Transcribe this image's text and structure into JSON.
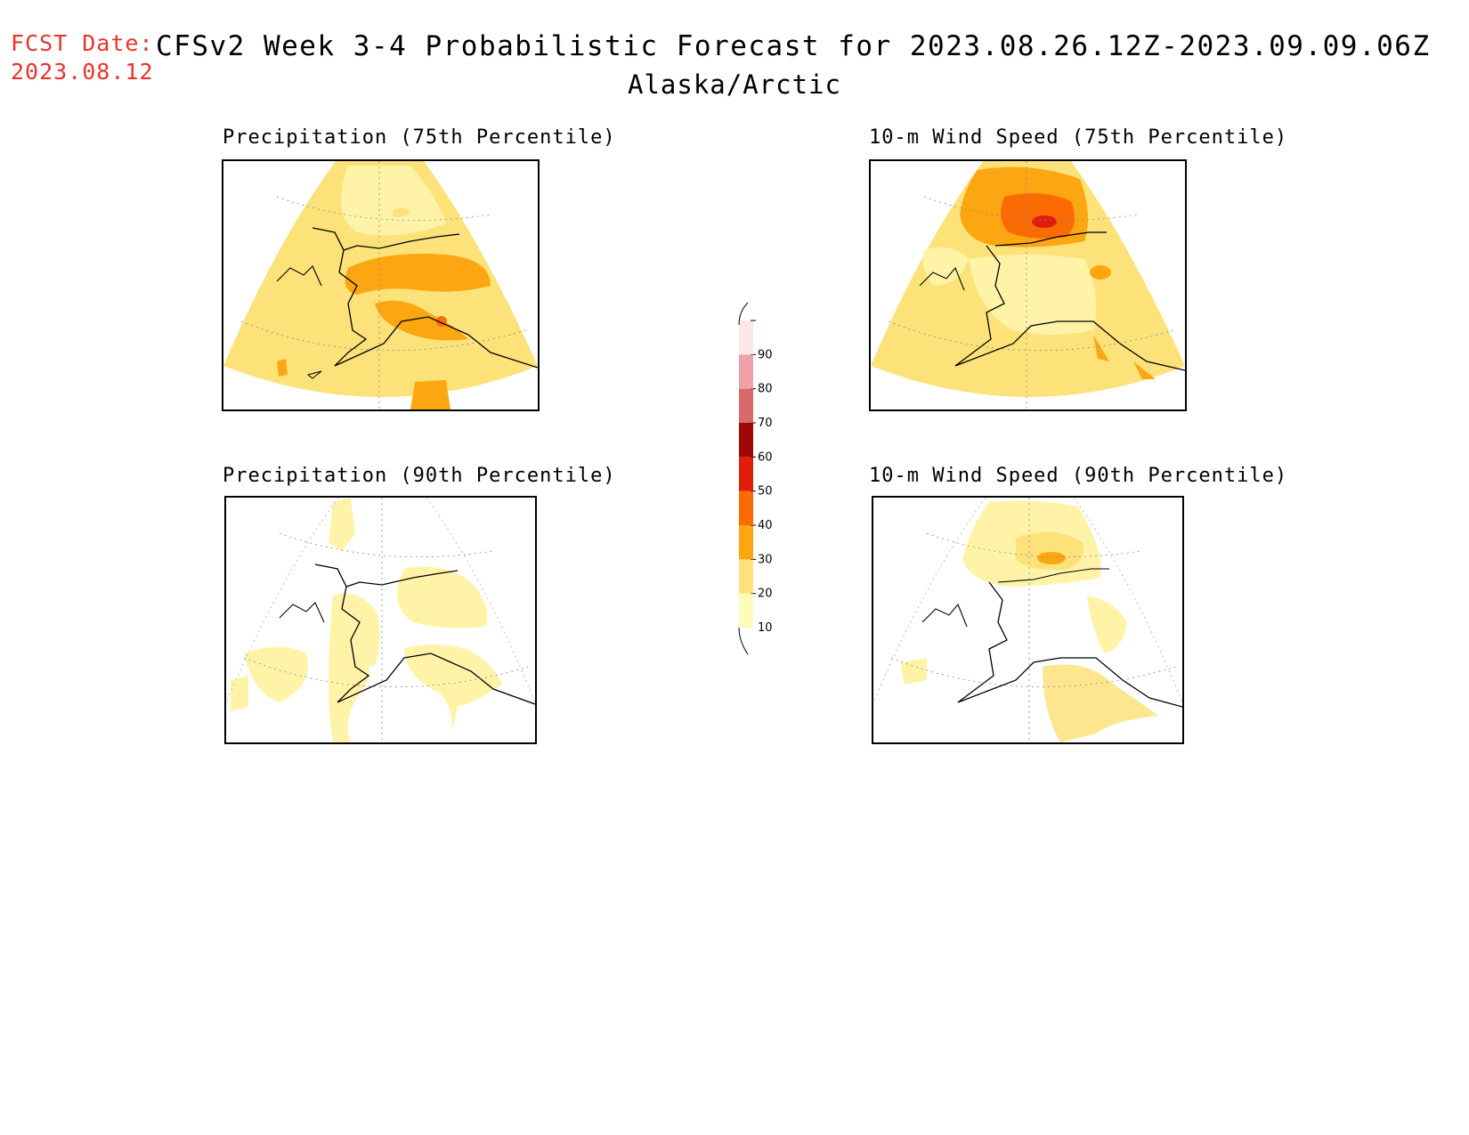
{
  "header": {
    "fcst_label": "FCST Date:",
    "fcst_date": "2023.08.12",
    "title": "CFSv2 Week 3-4 Probabilistic Forecast for 2023.08.26.12Z-2023.09.09.06Z",
    "region": "Alaska/Arctic"
  },
  "panels": [
    {
      "id": "precip75",
      "title": "Precipitation (75th Percentile)"
    },
    {
      "id": "wind75",
      "title": "10-m Wind Speed (75th Percentile)"
    },
    {
      "id": "precip90",
      "title": "Precipitation (90th Percentile)"
    },
    {
      "id": "wind90",
      "title": "10-m Wind Speed (90th Percentile)"
    }
  ],
  "colorbar": {
    "levels": [
      "10",
      "20",
      "30",
      "40",
      "50",
      "60",
      "70",
      "80",
      "90"
    ],
    "colors": [
      "#fffbb8",
      "#fde27a",
      "#fca612",
      "#fb6b04",
      "#e01c0a",
      "#a00808",
      "#d8686a",
      "#f0a0a8",
      "#fde6ea"
    ]
  }
}
